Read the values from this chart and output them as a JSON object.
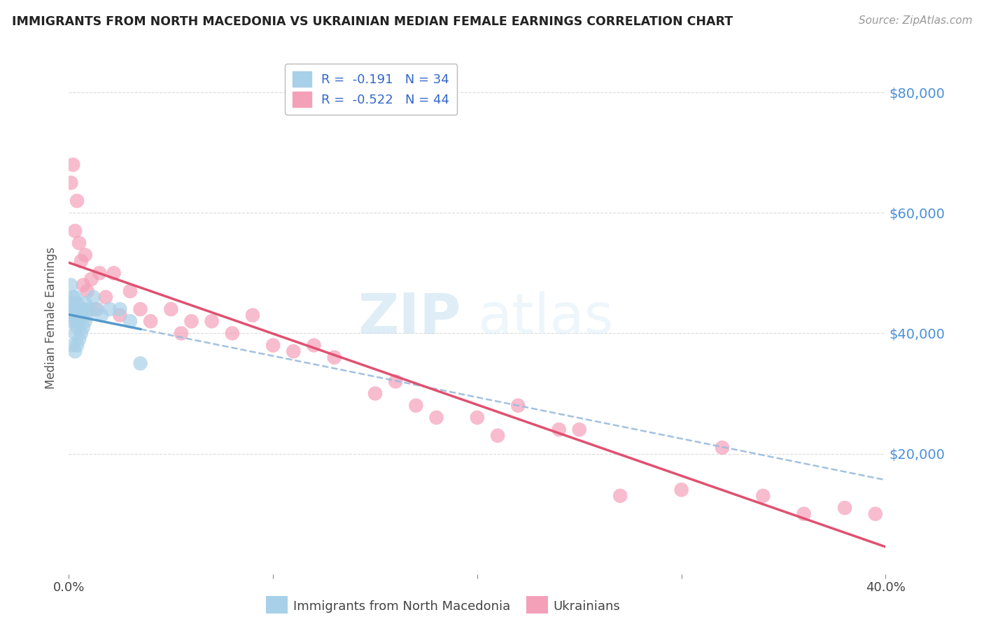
{
  "title": "IMMIGRANTS FROM NORTH MACEDONIA VS UKRAINIAN MEDIAN FEMALE EARNINGS CORRELATION CHART",
  "source": "Source: ZipAtlas.com",
  "ylabel": "Median Female Earnings",
  "yticks": [
    0,
    20000,
    40000,
    60000,
    80000
  ],
  "ytick_labels": [
    "",
    "$20,000",
    "$40,000",
    "$60,000",
    "$80,000"
  ],
  "legend1_label": "R =  -0.191   N = 34",
  "legend2_label": "R =  -0.522   N = 44",
  "legend_title1": "Immigrants from North Macedonia",
  "legend_title2": "Ukrainians",
  "blue_color": "#a8d0e8",
  "pink_color": "#f4a0b8",
  "blue_line_color": "#5599cc",
  "pink_line_color": "#e05070",
  "dashed_color": "#99bbdd",
  "xlim": [
    0.0,
    0.4
  ],
  "ylim": [
    0,
    85000
  ],
  "background_color": "#ffffff",
  "watermark_zip": "ZIP",
  "watermark_atlas": "atlas",
  "blue_scatter_x": [
    0.001,
    0.001,
    0.001,
    0.002,
    0.002,
    0.002,
    0.002,
    0.003,
    0.003,
    0.003,
    0.003,
    0.003,
    0.004,
    0.004,
    0.004,
    0.004,
    0.005,
    0.005,
    0.005,
    0.006,
    0.006,
    0.007,
    0.007,
    0.008,
    0.008,
    0.009,
    0.01,
    0.012,
    0.014,
    0.016,
    0.02,
    0.025,
    0.03,
    0.035
  ],
  "blue_scatter_y": [
    48000,
    45000,
    42000,
    46000,
    44000,
    43000,
    38000,
    46000,
    44000,
    42000,
    40000,
    37000,
    45000,
    43000,
    41000,
    38000,
    44000,
    42000,
    39000,
    43000,
    40000,
    44000,
    41000,
    45000,
    42000,
    43000,
    44000,
    46000,
    44000,
    43000,
    44000,
    44000,
    42000,
    35000
  ],
  "pink_scatter_x": [
    0.001,
    0.002,
    0.003,
    0.004,
    0.005,
    0.006,
    0.007,
    0.008,
    0.009,
    0.011,
    0.013,
    0.015,
    0.018,
    0.022,
    0.025,
    0.03,
    0.035,
    0.04,
    0.05,
    0.055,
    0.06,
    0.07,
    0.08,
    0.09,
    0.1,
    0.11,
    0.12,
    0.13,
    0.15,
    0.16,
    0.17,
    0.18,
    0.2,
    0.21,
    0.22,
    0.24,
    0.25,
    0.27,
    0.3,
    0.32,
    0.34,
    0.36,
    0.38,
    0.395
  ],
  "pink_scatter_y": [
    65000,
    68000,
    57000,
    62000,
    55000,
    52000,
    48000,
    53000,
    47000,
    49000,
    44000,
    50000,
    46000,
    50000,
    43000,
    47000,
    44000,
    42000,
    44000,
    40000,
    42000,
    42000,
    40000,
    43000,
    38000,
    37000,
    38000,
    36000,
    30000,
    32000,
    28000,
    26000,
    26000,
    23000,
    28000,
    24000,
    24000,
    13000,
    14000,
    21000,
    13000,
    10000,
    11000,
    10000
  ]
}
